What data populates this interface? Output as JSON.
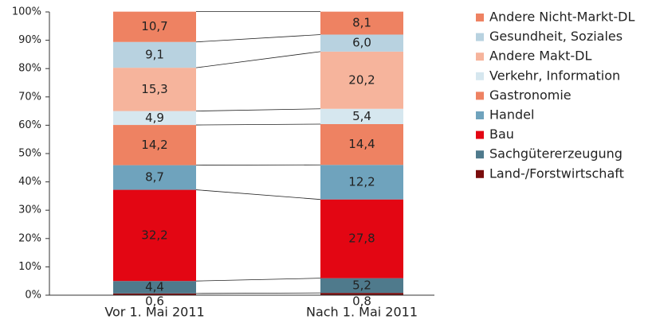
{
  "chart_data": {
    "type": "stacked_bar",
    "categories": [
      "Vor 1. Mai 2011",
      "Nach 1. Mai 2011"
    ],
    "ylim": [
      0,
      100
    ],
    "yticks": [
      {
        "value": 0,
        "label": "0%"
      },
      {
        "value": 10,
        "label": "10%"
      },
      {
        "value": 20,
        "label": "20%"
      },
      {
        "value": 30,
        "label": "30%"
      },
      {
        "value": 40,
        "label": "40%"
      },
      {
        "value": 50,
        "label": "50%"
      },
      {
        "value": 60,
        "label": "60%"
      },
      {
        "value": 70,
        "label": "70%"
      },
      {
        "value": 80,
        "label": "80%"
      },
      {
        "value": 90,
        "label": "90%"
      },
      {
        "value": 100,
        "label": "100%"
      }
    ],
    "series": [
      {
        "name": "Land-/Forstwirtschaft",
        "color": "#7a0c0c",
        "values": [
          0.6,
          0.8
        ],
        "value_labels": [
          "0,6",
          "0,8"
        ]
      },
      {
        "name": "Sachgütererzeugung",
        "color": "#4f7a8c",
        "values": [
          4.4,
          5.2
        ],
        "value_labels": [
          "4,4",
          "5,2"
        ]
      },
      {
        "name": "Bau",
        "color": "#e30613",
        "values": [
          32.2,
          27.8
        ],
        "value_labels": [
          "32,2",
          "27,8"
        ]
      },
      {
        "name": "Handel",
        "color": "#6fa3bd",
        "values": [
          8.7,
          12.2
        ],
        "value_labels": [
          "8,7",
          "12,2"
        ]
      },
      {
        "name": "Gastronomie",
        "color": "#ee8262",
        "values": [
          14.2,
          14.4
        ],
        "value_labels": [
          "14,2",
          "14,4"
        ]
      },
      {
        "name": "Verkehr, Information",
        "color": "#d6e7ef",
        "values": [
          4.9,
          5.4
        ],
        "value_labels": [
          "4,9",
          "5,4"
        ]
      },
      {
        "name": "Andere Makt-DL",
        "color": "#f6b49c",
        "values": [
          15.3,
          20.2
        ],
        "value_labels": [
          "15,3",
          "20,2"
        ]
      },
      {
        "name": "Gesundheit, Soziales",
        "color": "#b8d2e0",
        "values": [
          9.1,
          6.0
        ],
        "value_labels": [
          "9,1",
          "6,0"
        ]
      },
      {
        "name": "Andere Nicht-Markt-DL",
        "color": "#ee8262",
        "values": [
          10.7,
          8.1
        ],
        "value_labels": [
          "10,7",
          "8,1"
        ]
      }
    ]
  }
}
